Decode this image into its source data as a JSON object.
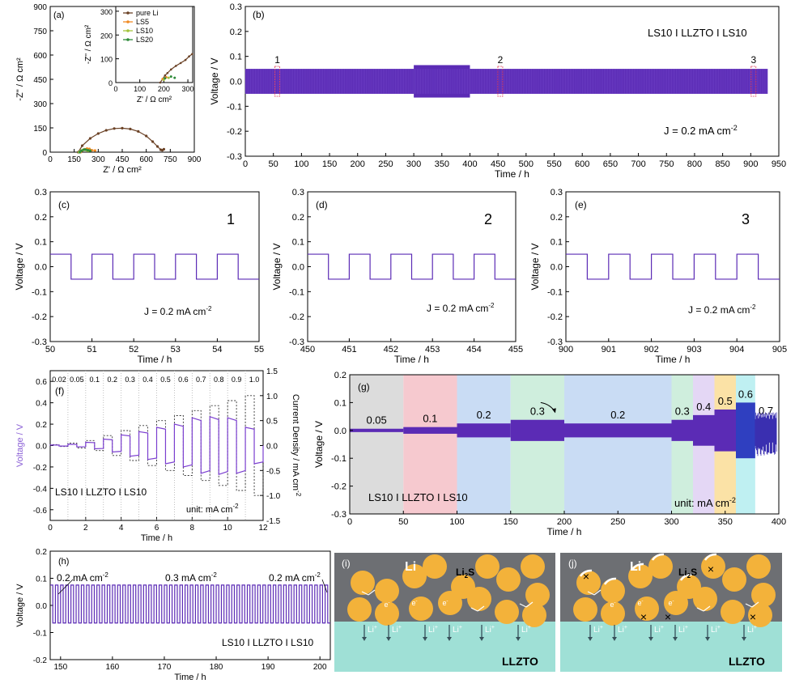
{
  "colors": {
    "purple": "#5b2bb5",
    "purple_light": "#8a5fd6",
    "blue_deep": "#3a2fb0",
    "axis": "#000000",
    "grey_bg": "#dcdcdc",
    "pink_bg": "#f6c9cf",
    "blue_bg": "#c9dcf4",
    "green_bg": "#cfeedd",
    "lavender_bg": "#e4d7f5",
    "yellow_bg": "#fbe2a6",
    "cyan_bg": "#bff0f2",
    "li_metal": "#6d6f73",
    "llzto": "#9fe0d6",
    "li2s_particle": "#f3b23a"
  },
  "chart_data": [
    {
      "panel": "(a)",
      "type": "scatter",
      "xlabel": "Z' / Ω cm²",
      "ylabel": "-Z'' / Ω cm²",
      "xlim": [
        0,
        900
      ],
      "ylim": [
        0,
        900
      ],
      "xticks": [
        "0",
        "150",
        "300",
        "450",
        "600",
        "750",
        "900"
      ],
      "yticks": [
        "0",
        "150",
        "300",
        "450",
        "600",
        "750",
        "900"
      ],
      "series": [
        {
          "name": "pure Li",
          "color": "#6b4226",
          "x": [
            175,
            200,
            250,
            300,
            350,
            400,
            450,
            500,
            550,
            600,
            640,
            670,
            690,
            700,
            710
          ],
          "y": [
            0,
            40,
            85,
            115,
            135,
            146,
            148,
            143,
            128,
            100,
            65,
            35,
            15,
            12,
            18
          ]
        },
        {
          "name": "LS5",
          "color": "#f08a24",
          "x": [
            190,
            200,
            215,
            230,
            245,
            260,
            280
          ],
          "y": [
            0,
            10,
            18,
            22,
            20,
            12,
            10
          ]
        },
        {
          "name": "LS10",
          "color": "#a3c43c",
          "x": [
            180,
            190,
            205,
            215,
            225,
            235,
            245
          ],
          "y": [
            0,
            8,
            14,
            16,
            13,
            8,
            10
          ]
        },
        {
          "name": "LS20",
          "color": "#2e8b3a",
          "x": [
            185,
            195,
            210,
            220,
            235,
            250
          ],
          "y": [
            0,
            9,
            15,
            16,
            12,
            9
          ]
        }
      ],
      "inset": {
        "xlabel": "Z' / Ω cm²",
        "ylabel": "-Z'' / Ω cm²",
        "xlim": [
          0,
          320
        ],
        "ylim": [
          0,
          320
        ],
        "xticks": [
          "0",
          "100",
          "200",
          "300"
        ],
        "yticks": [
          "0",
          "100",
          "200",
          "300"
        ],
        "legend": [
          "pure Li",
          "LS5",
          "LS10",
          "LS20"
        ]
      }
    },
    {
      "panel": "(b)",
      "type": "line",
      "title": "LS10 Ι LLZTO Ι LS10",
      "annotation": "J = 0.2 mA cm",
      "annotation_sup": "-2",
      "markers": [
        "1",
        "2",
        "3"
      ],
      "marker_x": [
        57,
        454,
        905
      ],
      "xlabel": "Time / h",
      "ylabel": "Voltage / V",
      "xlim": [
        0,
        950
      ],
      "ylim": [
        -0.3,
        0.3
      ],
      "xticks": [
        "0",
        "50",
        "100",
        "150",
        "200",
        "250",
        "300",
        "350",
        "400",
        "450",
        "500",
        "550",
        "600",
        "650",
        "700",
        "750",
        "800",
        "850",
        "900",
        "950"
      ],
      "yticks": [
        "0.3",
        "0.2",
        "0.1",
        "0.0",
        "-0.1",
        "-0.2",
        "-0.3"
      ],
      "envelope": {
        "x_start": 0,
        "x_end": 930,
        "amplitude": 0.05,
        "segments": [
          [
            0,
            300,
            0.05
          ],
          [
            300,
            400,
            0.065
          ],
          [
            400,
            930,
            0.05
          ]
        ]
      }
    },
    {
      "panel": "(c)",
      "type": "line",
      "label": "1",
      "annotation": "J = 0.2 mA cm",
      "annotation_sup": "-2",
      "xlabel": "Time / h",
      "ylabel": "Voltage / V",
      "xlim": [
        50,
        55
      ],
      "ylim": [
        -0.3,
        0.3
      ],
      "xticks": [
        "50",
        "51",
        "52",
        "53",
        "54",
        "55"
      ],
      "yticks": [
        "0.3",
        "0.2",
        "0.1",
        "0.0",
        "-0.1",
        "-0.2",
        "-0.3"
      ],
      "square_wave": {
        "start": 50,
        "end": 55,
        "period": 1,
        "high": 0.05,
        "low": -0.05,
        "phase": 0.5
      }
    },
    {
      "panel": "(d)",
      "type": "line",
      "label": "2",
      "annotation": "J = 0.2 mA cm",
      "annotation_sup": "-2",
      "xlabel": "Time / h",
      "ylabel": "Voltage / V",
      "xlim": [
        450,
        455
      ],
      "ylim": [
        -0.3,
        0.3
      ],
      "xticks": [
        "450",
        "451",
        "452",
        "453",
        "454",
        "455"
      ],
      "yticks": [
        "0.3",
        "0.2",
        "0.1",
        "0.0",
        "-0.1",
        "-0.2",
        "-0.3"
      ],
      "square_wave": {
        "start": 450,
        "end": 455,
        "period": 1,
        "high": 0.05,
        "low": -0.05,
        "phase": 0.5
      }
    },
    {
      "panel": "(e)",
      "type": "line",
      "label": "3",
      "annotation": "J = 0.2 mA cm",
      "annotation_sup": "-2",
      "xlabel": "Time / h",
      "ylabel": "Voltage / V",
      "xlim": [
        900,
        905
      ],
      "ylim": [
        -0.3,
        0.3
      ],
      "xticks": [
        "900",
        "901",
        "902",
        "903",
        "904",
        "905"
      ],
      "yticks": [
        "0.3",
        "0.2",
        "0.1",
        "0.0",
        "-0.1",
        "-0.2",
        "-0.3"
      ],
      "square_wave": {
        "start": 900,
        "end": 905,
        "period": 1,
        "high": 0.05,
        "low": -0.05,
        "phase": 0.5
      }
    },
    {
      "panel": "(f)",
      "type": "line",
      "title": "LS10 Ι LLZTO Ι LS10",
      "unit_note": "unit: mA cm",
      "unit_sup": "-2",
      "xlabel": "Time / h",
      "ylabel": "Voltage / V",
      "y2label": "Current Density / mA cm",
      "y2label_sup": "-2",
      "xlim": [
        0,
        12
      ],
      "ylim": [
        -0.7,
        0.7
      ],
      "y2lim": [
        -1.5,
        1.5
      ],
      "xticks": [
        "0",
        "2",
        "4",
        "6",
        "8",
        "10",
        "12"
      ],
      "yticks": [
        "0.6",
        "0.4",
        "0.2",
        "0.0",
        "-0.2",
        "-0.4",
        "-0.6"
      ],
      "y2ticks": [
        "1.5",
        "1.0",
        "0.5",
        "0.0",
        "-0.5",
        "-1.0",
        "-1.5"
      ],
      "current_steps": [
        "0.02",
        "0.05",
        "0.1",
        "0.2",
        "0.3",
        "0.4",
        "0.5",
        "0.6",
        "0.7",
        "0.8",
        "0.9",
        "1.0"
      ],
      "current_values": [
        0.02,
        0.05,
        0.1,
        0.2,
        0.3,
        0.4,
        0.5,
        0.6,
        0.7,
        0.8,
        0.9,
        1.0
      ],
      "voltage_values": [
        0.005,
        0.012,
        0.03,
        0.06,
        0.1,
        0.13,
        0.17,
        0.2,
        0.26,
        0.27,
        0.26,
        0.17
      ]
    },
    {
      "panel": "(g)",
      "type": "line",
      "title": "LS10 Ι LLZTO Ι LS10",
      "unit_note": "unit: mA cm",
      "unit_sup": "-2",
      "xlabel": "Time / h",
      "ylabel": "Voltage / V",
      "xlim": [
        0,
        400
      ],
      "ylim": [
        -0.3,
        0.2
      ],
      "xticks": [
        "0",
        "50",
        "100",
        "150",
        "200",
        "250",
        "300",
        "350",
        "400"
      ],
      "yticks": [
        "0.2",
        "0.1",
        "0.0",
        "-0.1",
        "-0.2",
        "-0.3"
      ],
      "bands": [
        {
          "label": "0.05",
          "x0": 0,
          "x1": 50,
          "amp": 0.006,
          "bg": "grey_bg"
        },
        {
          "label": "0.1",
          "x0": 50,
          "x1": 100,
          "amp": 0.012,
          "bg": "pink_bg"
        },
        {
          "label": "0.2",
          "x0": 100,
          "x1": 150,
          "amp": 0.025,
          "bg": "blue_bg"
        },
        {
          "label": "0.3",
          "x0": 150,
          "x1": 200,
          "amp": 0.038,
          "bg": "green_bg"
        },
        {
          "label": "0.2",
          "x0": 200,
          "x1": 300,
          "amp": 0.025,
          "bg": "blue_bg"
        },
        {
          "label": "0.3",
          "x0": 300,
          "x1": 320,
          "amp": 0.038,
          "bg": "green_bg"
        },
        {
          "label": "0.4",
          "x0": 320,
          "x1": 340,
          "amp": 0.055,
          "bg": "lavender_bg"
        },
        {
          "label": "0.5",
          "x0": 340,
          "x1": 360,
          "amp": 0.075,
          "bg": "yellow_bg"
        },
        {
          "label": "0.6",
          "x0": 360,
          "x1": 378,
          "amp": 0.1,
          "bg": "cyan_bg"
        },
        {
          "label": "0.7",
          "x0": 378,
          "x1": 398,
          "amp": 0.04,
          "bg": ""
        }
      ]
    },
    {
      "panel": "(h)",
      "type": "line",
      "title": "LS10 Ι LLZTO Ι LS10",
      "labels": [
        {
          "text": "0.2 mA cm",
          "sup": "-2"
        },
        {
          "text": "0.3 mA cm",
          "sup": "-2"
        },
        {
          "text": "0.2 mA cm",
          "sup": "-2"
        }
      ],
      "xlabel": "Time / h",
      "ylabel": "Voltage / V",
      "xlim": [
        148,
        202
      ],
      "ylim": [
        -0.2,
        0.2
      ],
      "xticks": [
        "150",
        "160",
        "170",
        "180",
        "190",
        "200"
      ],
      "yticks": [
        "0.2",
        "0.1",
        "0.0",
        "-0.1",
        "-0.2"
      ],
      "square_wave": {
        "start": 148,
        "end": 202,
        "period": 1,
        "high": 0.075,
        "low": -0.065,
        "phase": 0.5
      }
    }
  ],
  "schematics": {
    "i": {
      "label": "(i)",
      "li": "Li",
      "li2s": "Li",
      "li2s_sub": "2",
      "li2s_s": "S",
      "electrolyte": "LLZTO",
      "electron": "e",
      "ion": "Li"
    },
    "j": {
      "label": "(j)",
      "li": "Li",
      "li2s": "Li",
      "li2s_sub": "2",
      "li2s_s": "S",
      "electrolyte": "LLZTO",
      "electron": "e",
      "ion": "Li"
    }
  }
}
